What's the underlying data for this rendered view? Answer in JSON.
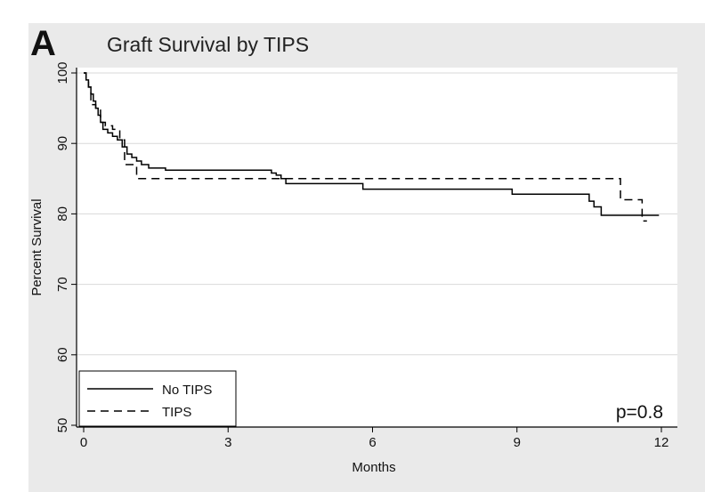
{
  "chart_data": {
    "type": "line",
    "panel_label": "A",
    "title": "Graft Survival by TIPS",
    "xlabel": "Months",
    "ylabel": "Percent Survival",
    "xlim": [
      0,
      12
    ],
    "ylim": [
      50,
      100
    ],
    "xticks": [
      0,
      3,
      6,
      9,
      12
    ],
    "yticks": [
      50,
      60,
      70,
      80,
      90,
      100
    ],
    "grid": true,
    "legend_position": "bottom-left",
    "annotation": "p=0.8",
    "colors": {
      "background": "#eaeaea",
      "plot_area": "#ffffff",
      "line": "#000000"
    },
    "series": [
      {
        "name": "No TIPS",
        "style": "solid",
        "x": [
          0,
          0.05,
          0.1,
          0.15,
          0.2,
          0.25,
          0.3,
          0.35,
          0.4,
          0.5,
          0.6,
          0.7,
          0.8,
          0.9,
          1.0,
          1.1,
          1.2,
          1.35,
          1.7,
          2.0,
          3.0,
          3.9,
          4.0,
          4.1,
          4.2,
          5.0,
          5.8,
          7.0,
          8.0,
          8.9,
          10.0,
          10.5,
          10.6,
          10.75,
          11.0,
          11.3,
          11.5,
          11.95
        ],
        "y": [
          100,
          99,
          98,
          97,
          96,
          95,
          94,
          93,
          92,
          91.5,
          91,
          90.5,
          89.5,
          88.5,
          88,
          87.5,
          87,
          86.5,
          86.2,
          86.2,
          86.2,
          85.8,
          85.5,
          85,
          84.3,
          84.3,
          83.5,
          83.5,
          83.5,
          82.8,
          82.8,
          81.8,
          81,
          79.8,
          79.8,
          79.8,
          79.8,
          79.8
        ]
      },
      {
        "name": "TIPS",
        "style": "dashed",
        "x": [
          0,
          0.05,
          0.1,
          0.15,
          0.25,
          0.35,
          0.45,
          0.6,
          0.75,
          0.85,
          1.1,
          2.0,
          4.0,
          6.0,
          8.0,
          10.0,
          11.0,
          11.15,
          11.3,
          11.6,
          11.7
        ],
        "y": [
          100,
          99,
          98,
          95.5,
          95,
          93,
          92.5,
          92,
          90.5,
          87,
          85,
          85,
          85,
          85,
          85,
          85,
          85,
          82,
          82,
          79,
          79
        ]
      }
    ]
  }
}
